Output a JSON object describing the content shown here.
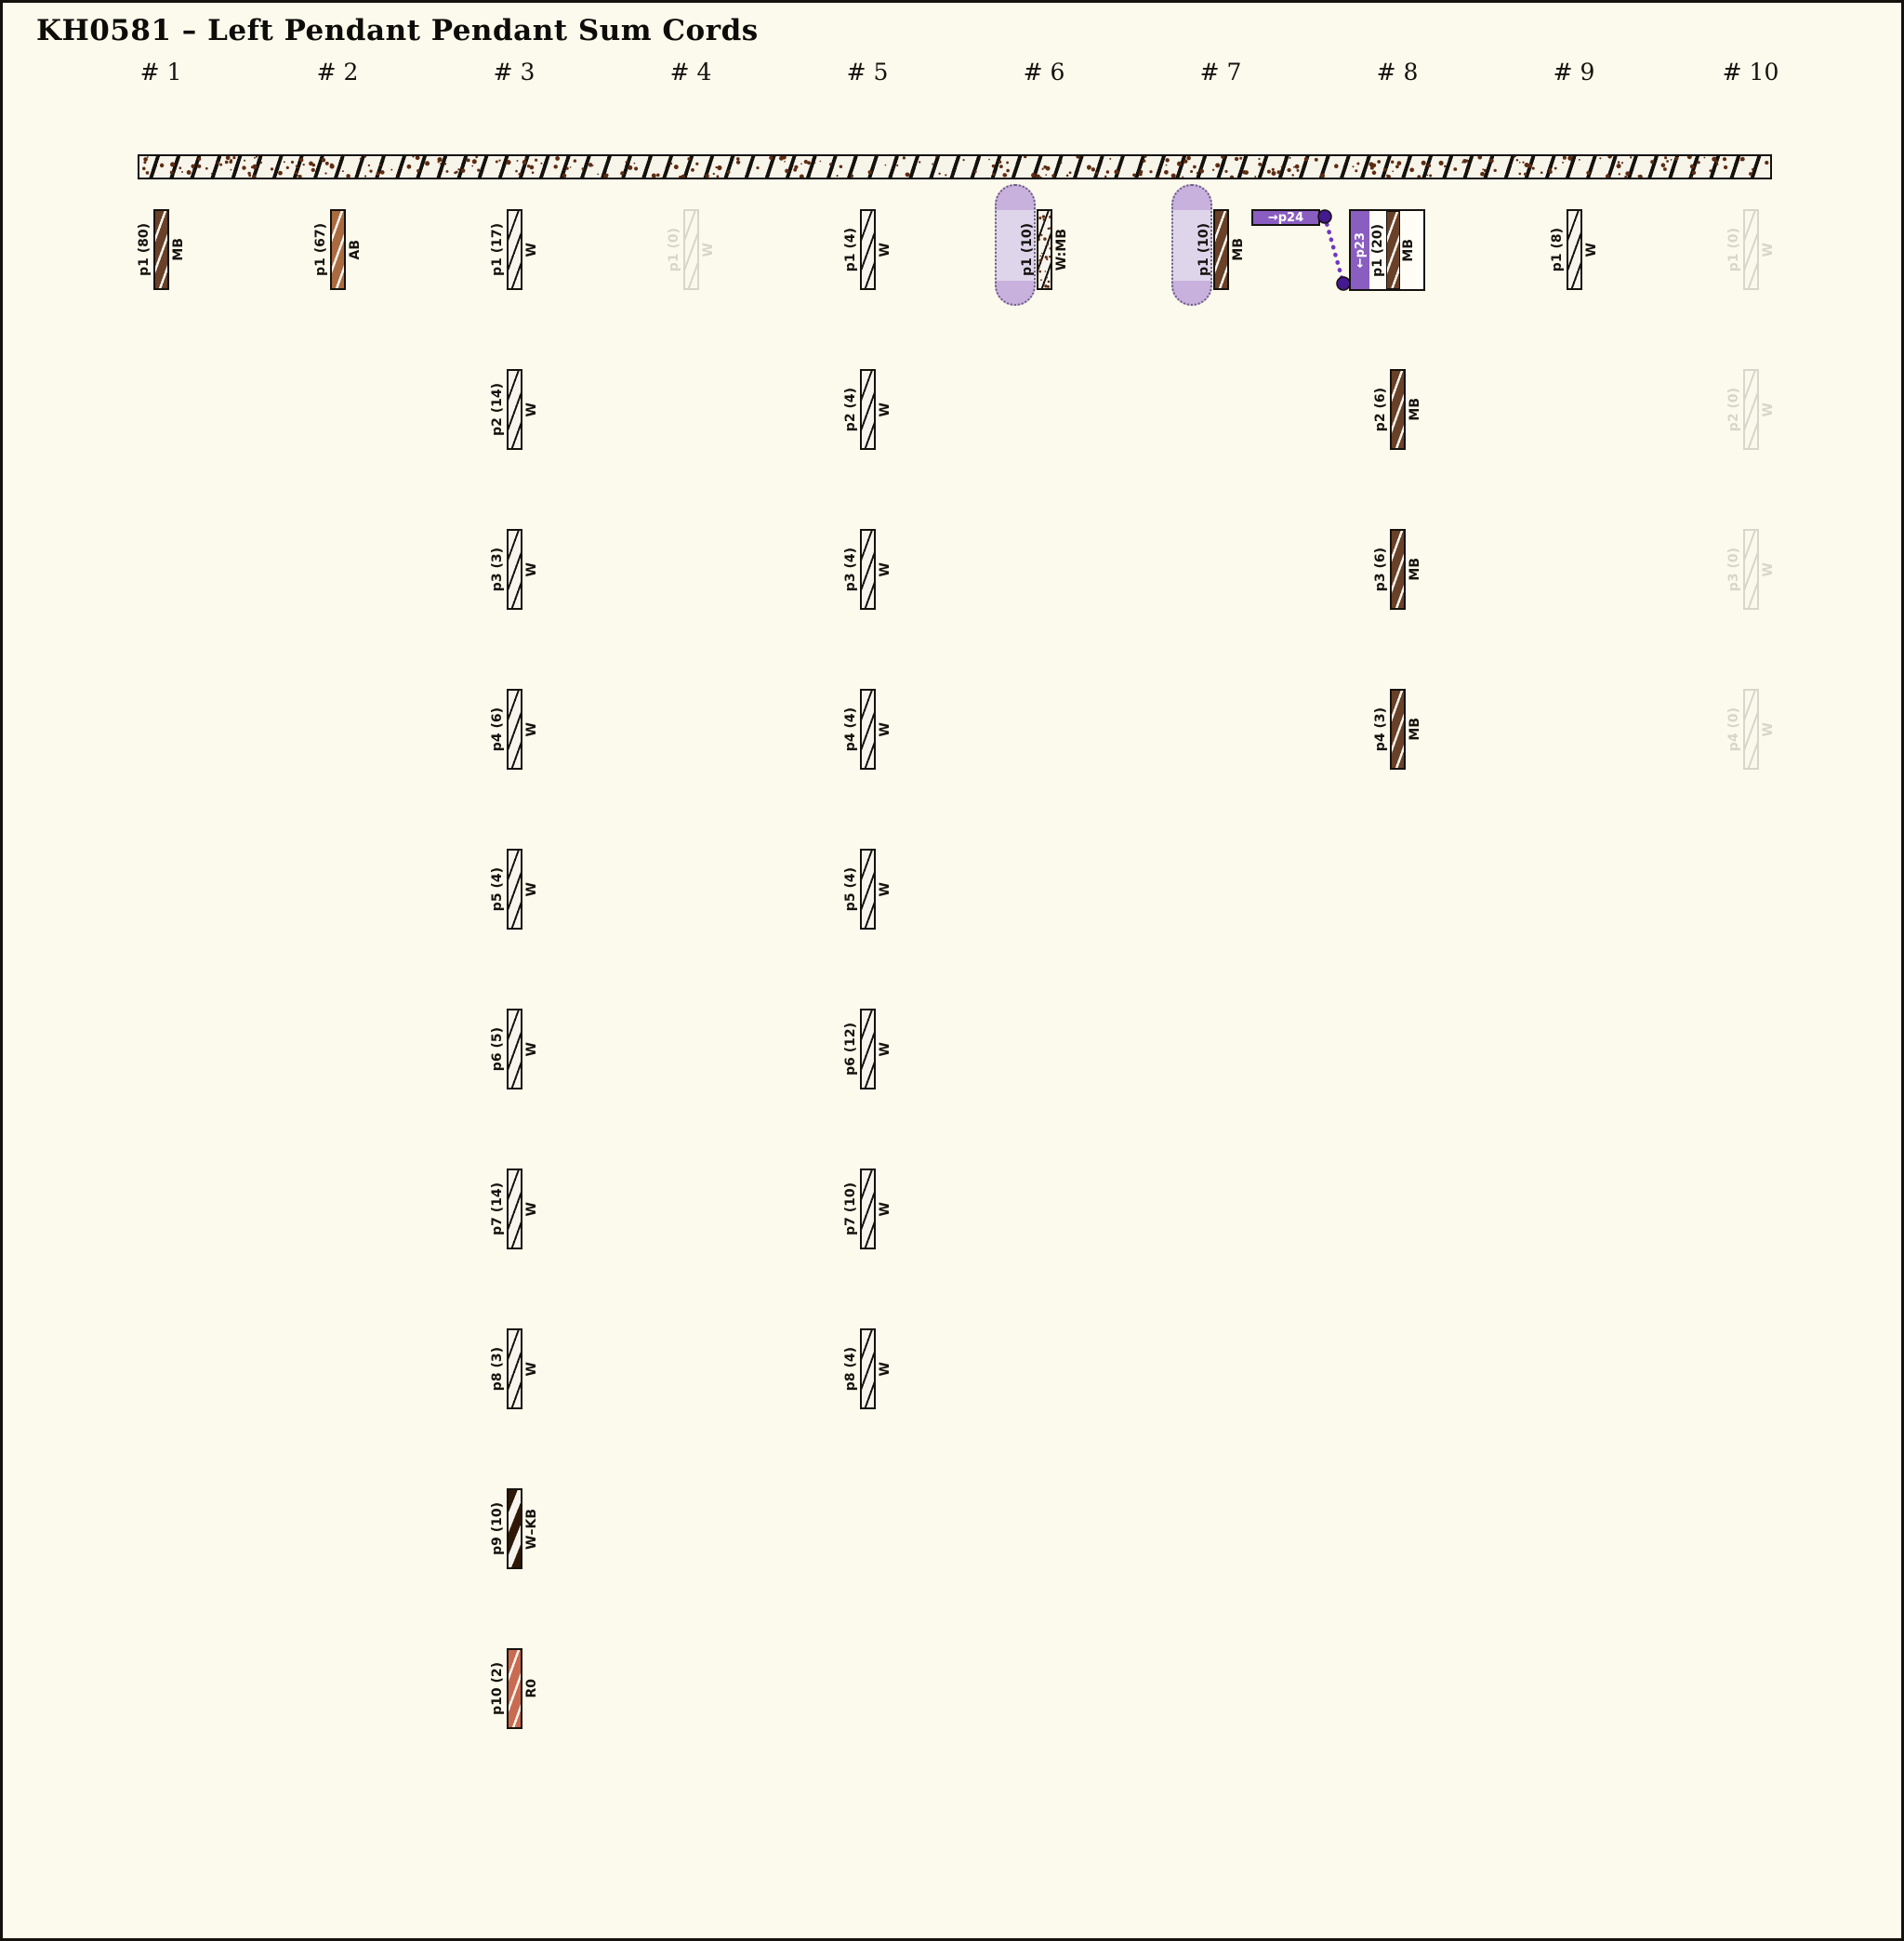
{
  "title": "KH0581 – Left Pendant Pendant Sum Cords",
  "palette": {
    "background": "#fbfaec",
    "ink": "#15120e",
    "cord_brown_MB": "#684128",
    "cord_brown_AB": "#ab6b41",
    "cord_red_R0": "#c96b51",
    "cord_dark_KB": "#301807",
    "speckle_brown": "#5e2c12",
    "purple_accent": "#8a5ec1",
    "violet_node": "#45198f",
    "lavender_highlight": "#ded5eb",
    "lavender_cap": "#c8b2dd",
    "dotted_border": "#6a5c80"
  },
  "annotations": {
    "p24_label": "→p24",
    "p23_label": "←p23"
  },
  "columns": [
    {
      "header": "# 1",
      "pendants": [
        {
          "label": "p1 (80)",
          "code": "MB",
          "cord": "MB"
        }
      ]
    },
    {
      "header": "# 2",
      "pendants": [
        {
          "label": "p1 (67)",
          "code": "AB",
          "cord": "AB"
        }
      ]
    },
    {
      "header": "# 3",
      "pendants": [
        {
          "label": "p1 (17)",
          "code": "W",
          "cord": "W"
        },
        {
          "label": "p2 (14)",
          "code": "W",
          "cord": "W"
        },
        {
          "label": "p3 (3)",
          "code": "W",
          "cord": "W"
        },
        {
          "label": "p4 (6)",
          "code": "W",
          "cord": "W"
        },
        {
          "label": "p5 (4)",
          "code": "W",
          "cord": "W"
        },
        {
          "label": "p6 (5)",
          "code": "W",
          "cord": "W"
        },
        {
          "label": "p7 (14)",
          "code": "W",
          "cord": "W"
        },
        {
          "label": "p8 (3)",
          "code": "W",
          "cord": "W"
        },
        {
          "label": "p9 (10)",
          "code": "W–KB",
          "cord": "WKB"
        },
        {
          "label": "p10 (2)",
          "code": "R0",
          "cord": "R0"
        }
      ]
    },
    {
      "header": "# 4",
      "pendants": [
        {
          "label": "p1 (0)",
          "code": "W",
          "cord": "W",
          "faded": true
        }
      ]
    },
    {
      "header": "# 5",
      "pendants": [
        {
          "label": "p1 (4)",
          "code": "W",
          "cord": "W"
        },
        {
          "label": "p2 (4)",
          "code": "W",
          "cord": "W"
        },
        {
          "label": "p3 (4)",
          "code": "W",
          "cord": "W"
        },
        {
          "label": "p4 (4)",
          "code": "W",
          "cord": "W"
        },
        {
          "label": "p5 (4)",
          "code": "W",
          "cord": "W"
        },
        {
          "label": "p6 (12)",
          "code": "W",
          "cord": "W"
        },
        {
          "label": "p7 (10)",
          "code": "W",
          "cord": "W"
        },
        {
          "label": "p8 (4)",
          "code": "W",
          "cord": "W"
        }
      ]
    },
    {
      "header": "# 6",
      "pendants": [
        {
          "label": "p1 (10)",
          "code": "W:MB",
          "cord": "WMB",
          "highlight": true
        }
      ]
    },
    {
      "header": "# 7",
      "pendants": [
        {
          "label": "p1 (10)",
          "code": "MB",
          "cord": "MB",
          "highlight": true
        }
      ]
    },
    {
      "header": "# 8",
      "pendants": [
        {
          "label": "p1 (20)",
          "code": "MB",
          "cord": "MB",
          "boxed": true
        },
        {
          "label": "p2 (6)",
          "code": "MB",
          "cord": "MB"
        },
        {
          "label": "p3 (6)",
          "code": "MB",
          "cord": "MB"
        },
        {
          "label": "p4 (3)",
          "code": "MB",
          "cord": "MB"
        }
      ]
    },
    {
      "header": "# 9",
      "pendants": [
        {
          "label": "p1 (8)",
          "code": "W",
          "cord": "W"
        }
      ]
    },
    {
      "header": "# 10",
      "pendants": [
        {
          "label": "p1 (0)",
          "code": "W",
          "cord": "W",
          "faded": true
        },
        {
          "label": "p2 (0)",
          "code": "W",
          "cord": "W",
          "faded": true
        },
        {
          "label": "p3 (0)",
          "code": "W",
          "cord": "W",
          "faded": true
        },
        {
          "label": "p4 (0)",
          "code": "W",
          "cord": "W",
          "faded": true
        }
      ]
    }
  ]
}
